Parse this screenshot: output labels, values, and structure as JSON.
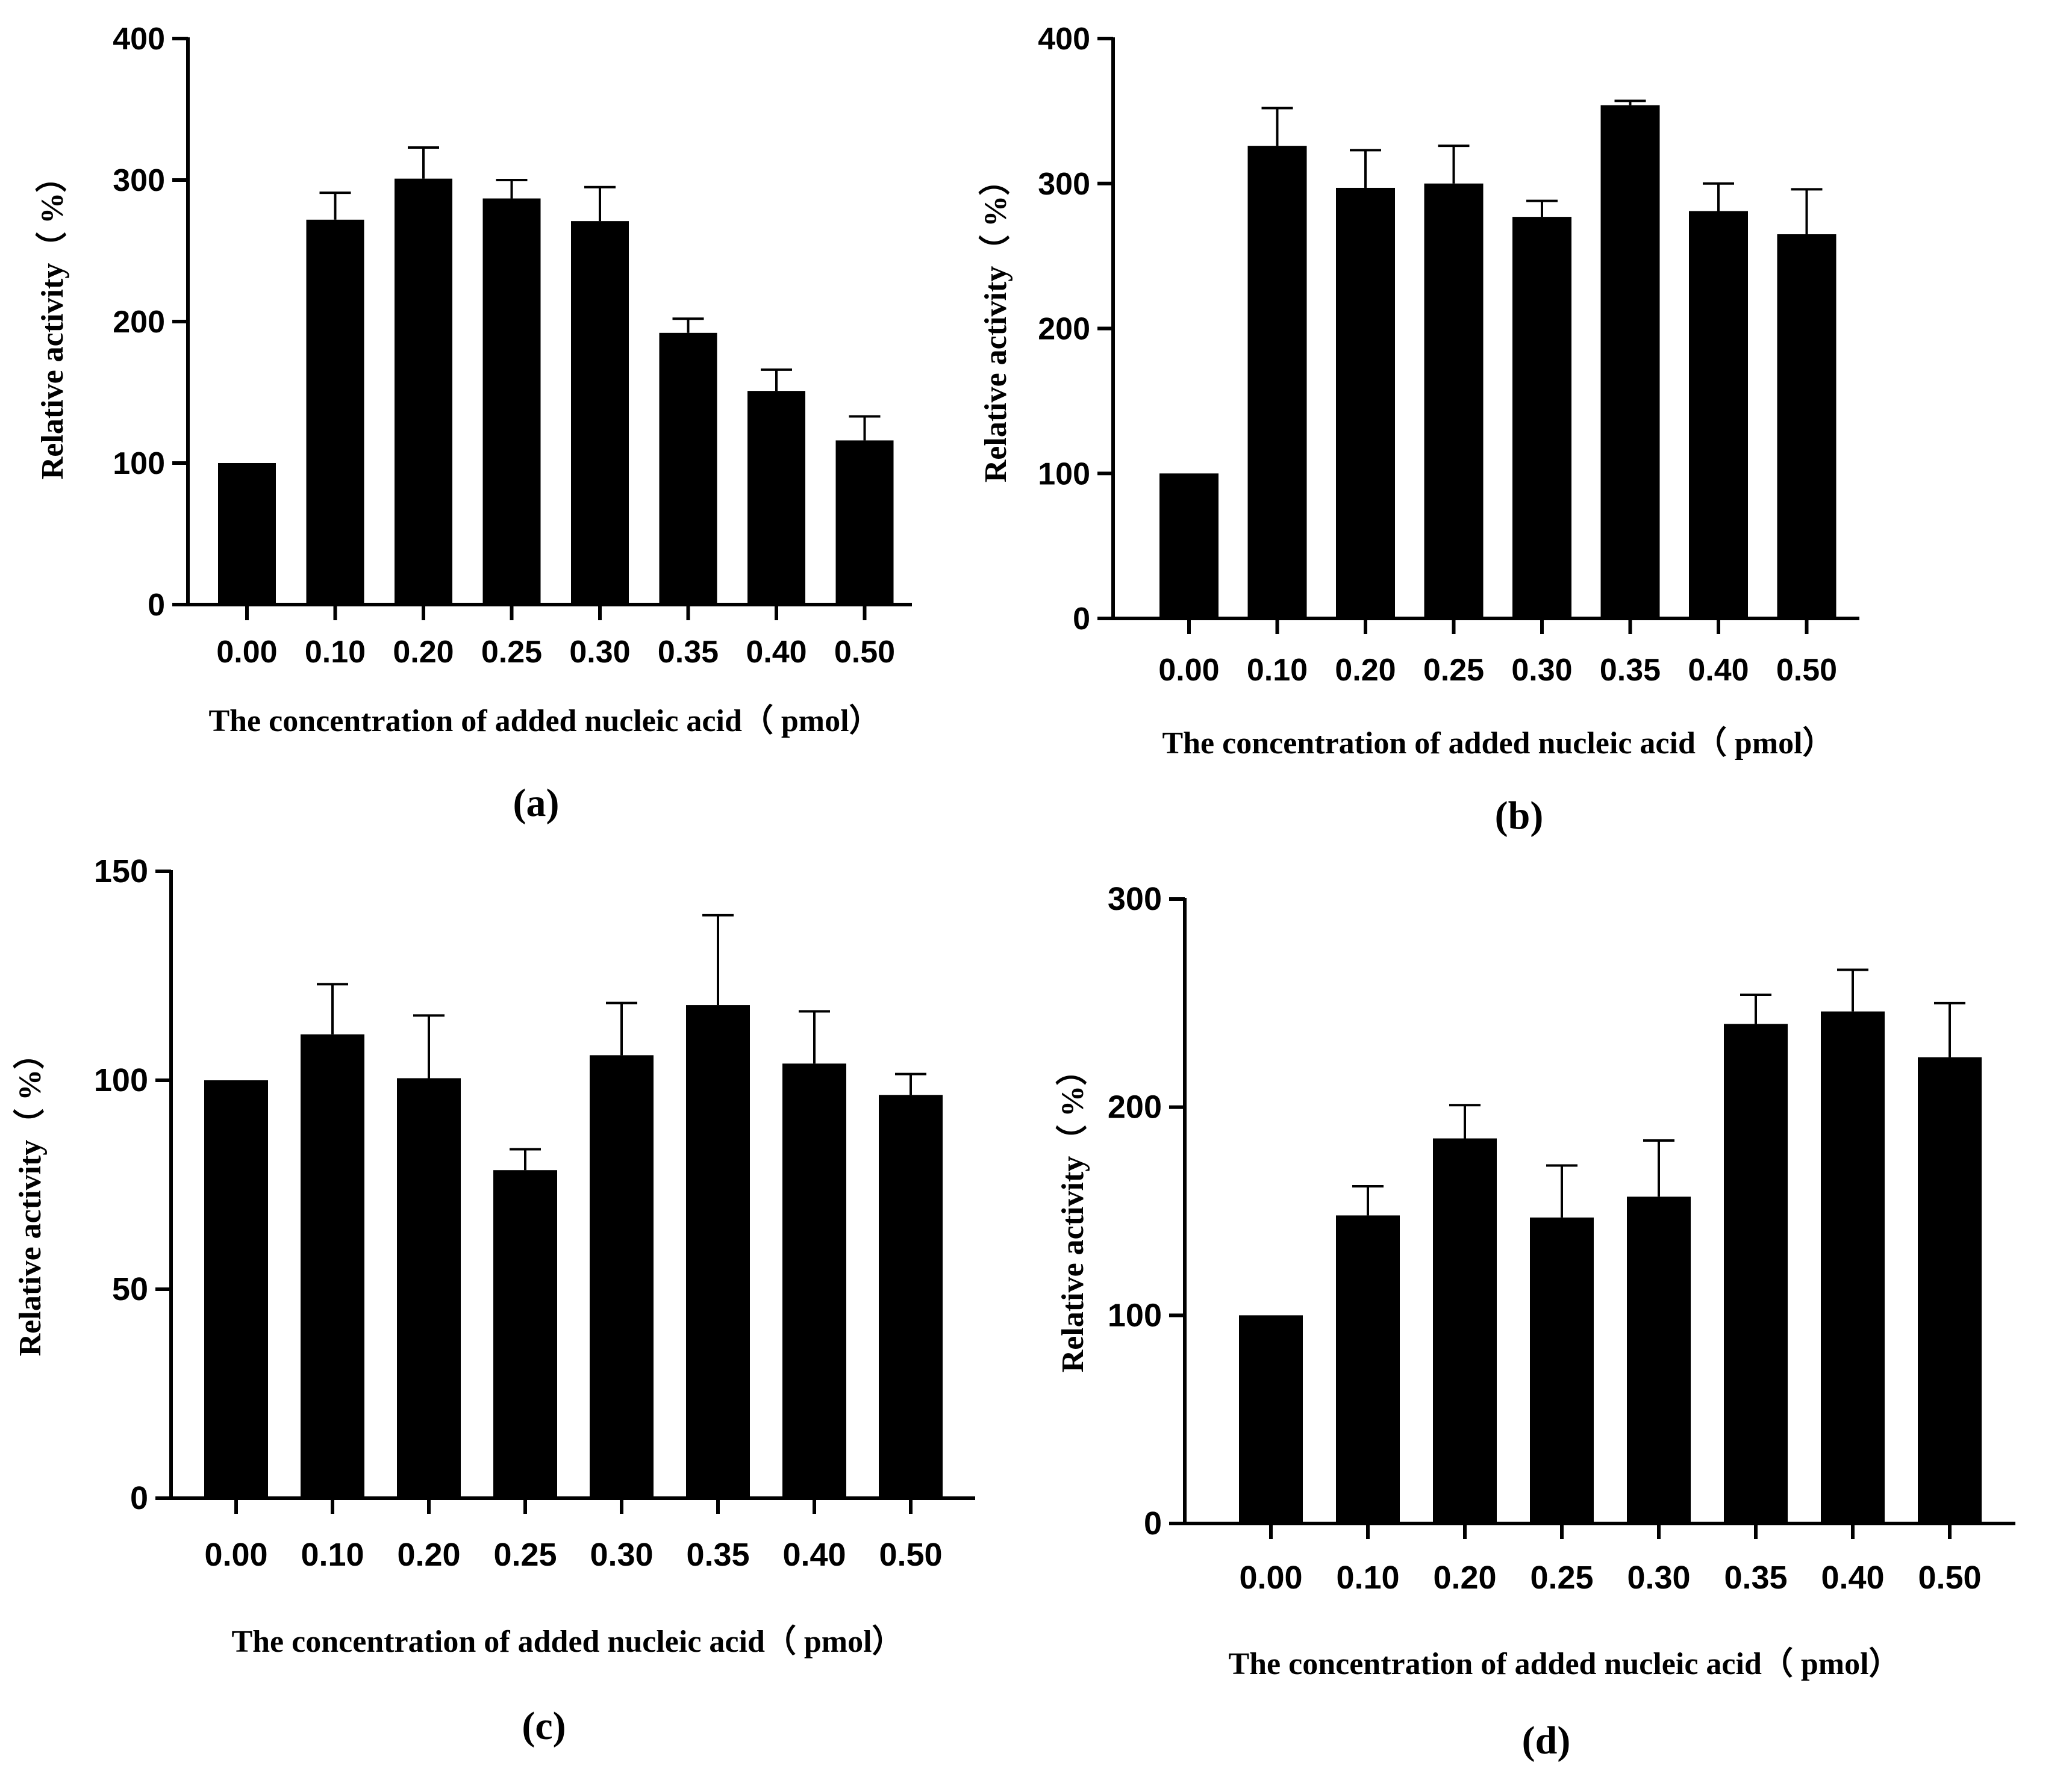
{
  "chart_data": [
    {
      "type": "bar",
      "panel_label": "(a)",
      "categories": [
        "0.00",
        "0.10",
        "0.20",
        "0.25",
        "0.30",
        "0.35",
        "0.40",
        "0.50"
      ],
      "values": [
        100,
        272,
        301,
        287,
        271,
        192,
        151,
        116
      ],
      "errors": [
        0,
        19,
        22,
        13,
        24,
        10,
        15,
        17
      ],
      "yticks": [
        "0",
        "100",
        "200",
        "300",
        "400"
      ],
      "ylim": [
        0,
        400
      ],
      "xlabel": "The concentration of added nucleic acid（ pmol）",
      "ylabel": "Relative activity（ %）",
      "color": "#000000"
    },
    {
      "type": "bar",
      "panel_label": "(b)",
      "categories": [
        "0.00",
        "0.10",
        "0.20",
        "0.25",
        "0.30",
        "0.35",
        "0.40",
        "0.50"
      ],
      "values": [
        100,
        326,
        297,
        300,
        277,
        354,
        281,
        265
      ],
      "errors": [
        0,
        26,
        26,
        26,
        11,
        3,
        19,
        31
      ],
      "yticks": [
        "0",
        "100",
        "200",
        "300",
        "400"
      ],
      "ylim": [
        0,
        400
      ],
      "xlabel": "The concentration of added nucleic acid（ pmol）",
      "ylabel": "Relative activity（ %）",
      "color": "#000000"
    },
    {
      "type": "bar",
      "panel_label": "(c)",
      "categories": [
        "0.00",
        "0.10",
        "0.20",
        "0.25",
        "0.30",
        "0.35",
        "0.40",
        "0.50"
      ],
      "values": [
        100,
        111,
        100.5,
        78.5,
        106,
        118,
        104,
        96.5
      ],
      "errors": [
        0,
        12,
        15,
        5,
        12.5,
        21.5,
        12.5,
        5
      ],
      "yticks": [
        "0",
        "50",
        "100",
        "150"
      ],
      "ylim": [
        0,
        150
      ],
      "xlabel": "The concentration of added nucleic acid（ pmol）",
      "ylabel": "Relative activity（ %）",
      "color": "#000000"
    },
    {
      "type": "bar",
      "panel_label": "(d)",
      "categories": [
        "0.00",
        "0.10",
        "0.20",
        "0.25",
        "0.30",
        "0.35",
        "0.40",
        "0.50"
      ],
      "values": [
        100,
        148,
        185,
        147,
        157,
        240,
        246,
        224
      ],
      "errors": [
        0,
        14,
        16,
        25,
        27,
        14,
        20,
        26
      ],
      "yticks": [
        "0",
        "100",
        "200",
        "300"
      ],
      "ylim": [
        0,
        300
      ],
      "xlabel": "The concentration of added nucleic acid（ pmol）",
      "ylabel": "Relative activity（ %）",
      "color": "#000000"
    }
  ]
}
